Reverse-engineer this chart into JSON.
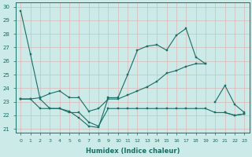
{
  "xlabel": "Humidex (Indice chaleur)",
  "bg_color": "#cceae7",
  "grid_color": "#b0d8d4",
  "line_color": "#1a6e65",
  "xlim": [
    -0.5,
    23.5
  ],
  "ylim": [
    21,
    30
  ],
  "yticks": [
    21,
    22,
    23,
    24,
    25,
    26,
    27,
    28,
    29,
    30
  ],
  "xticks": [
    0,
    1,
    2,
    3,
    4,
    5,
    6,
    7,
    8,
    9,
    10,
    11,
    12,
    13,
    14,
    15,
    16,
    17,
    18,
    19,
    20,
    21,
    22,
    23
  ],
  "series": [
    [
      29.7,
      26.5,
      23.2,
      22.5,
      22.5,
      22.3,
      21.8,
      21.2,
      21.1,
      23.3,
      23.3,
      25.0,
      26.8,
      27.1,
      27.2,
      26.8,
      27.9,
      28.4,
      26.3,
      25.8,
      null,
      null,
      null,
      null
    ],
    [
      23.2,
      null,
      null,
      null,
      null,
      null,
      null,
      null,
      null,
      null,
      null,
      null,
      null,
      null,
      null,
      null,
      null,
      null,
      null,
      null,
      23.0,
      24.2,
      22.8,
      22.2
    ],
    [
      23.2,
      23.2,
      23.3,
      23.6,
      23.8,
      23.3,
      23.3,
      22.3,
      22.5,
      23.2,
      23.2,
      23.5,
      23.8,
      24.1,
      24.5,
      25.1,
      25.3,
      25.6,
      25.8,
      25.8,
      null,
      null,
      null,
      null
    ],
    [
      null,
      null,
      null,
      null,
      null,
      null,
      null,
      null,
      null,
      null,
      null,
      null,
      null,
      null,
      null,
      null,
      null,
      null,
      null,
      null,
      null,
      22.2,
      22.0,
      22.1
    ],
    [
      23.2,
      23.2,
      22.5,
      22.5,
      22.5,
      22.2,
      22.2,
      21.5,
      21.2,
      22.5,
      22.5,
      22.5,
      22.5,
      22.5,
      22.5,
      22.5,
      22.5,
      22.5,
      22.5,
      22.5,
      22.2,
      22.2,
      22.0,
      22.1
    ]
  ]
}
